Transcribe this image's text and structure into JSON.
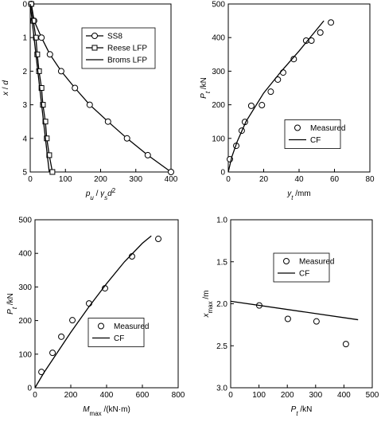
{
  "chart_data": [
    {
      "type": "line",
      "color": "#000000",
      "y_inverted": true,
      "legend": "upper right",
      "xlabel": [
        {
          "text": "p",
          "italic": true
        },
        {
          "text": "u",
          "italic": true,
          "pos": "sub"
        },
        {
          "text": " / "
        },
        {
          "text": "γ",
          "italic": true
        },
        {
          "text": "s",
          "italic": true,
          "pos": "sub"
        },
        {
          "text": "d",
          "italic": true
        },
        {
          "text": "2",
          "pos": "sup"
        }
      ],
      "ylabel": [
        {
          "text": "x",
          "italic": true
        },
        {
          "text": " / "
        },
        {
          "text": "d",
          "italic": true
        }
      ],
      "xlim": [
        0,
        400
      ],
      "xticks": [
        0,
        100,
        200,
        300,
        400
      ],
      "ylim": [
        0,
        5
      ],
      "yticks": [
        0,
        1,
        2,
        3,
        4,
        5
      ],
      "series": [
        {
          "name": "SS8",
          "marker": "circle",
          "line": true,
          "x": [
            3,
            11,
            32,
            56,
            88,
            127,
            169,
            221,
            275,
            334,
            400
          ],
          "y": [
            0,
            0.5,
            1,
            1.5,
            2,
            2.5,
            3,
            3.5,
            4,
            4.5,
            5
          ]
        },
        {
          "name": "Reese LFP",
          "marker": "square",
          "line": true,
          "x": [
            3,
            9,
            16,
            20,
            25,
            32,
            36,
            43,
            47,
            54,
            63
          ],
          "y": [
            0,
            0.5,
            1,
            1.5,
            2,
            2.5,
            3,
            3.5,
            4,
            4.5,
            5
          ]
        },
        {
          "name": "Broms LFP",
          "marker": "none",
          "line": true,
          "x": [
            0,
            54
          ],
          "y": [
            0,
            5
          ]
        }
      ]
    },
    {
      "type": "line",
      "color": "#000000",
      "y_inverted": false,
      "legend": "right",
      "xlabel": [
        {
          "text": "y",
          "italic": true
        },
        {
          "text": "t",
          "italic": true,
          "pos": "sub"
        },
        {
          "text": " /mm"
        }
      ],
      "ylabel": [
        {
          "text": "P",
          "italic": true
        },
        {
          "text": "t",
          "italic": true,
          "pos": "sub"
        },
        {
          "text": " /kN"
        }
      ],
      "xlim": [
        0,
        80
      ],
      "xticks": [
        0,
        20,
        40,
        60,
        80
      ],
      "ylim": [
        0,
        500
      ],
      "yticks": [
        0,
        100,
        200,
        300,
        400,
        500
      ],
      "series": [
        {
          "name": "Measured",
          "marker": "circle",
          "line": false,
          "x": [
            0.9,
            4.5,
            7.6,
            9.4,
            13,
            19,
            24,
            28,
            31,
            37,
            44,
            47,
            52,
            58
          ],
          "y": [
            38,
            78,
            123,
            149,
            197,
            199,
            239,
            275,
            296,
            336,
            391,
            391,
            415,
            445
          ]
        },
        {
          "name": "CF",
          "marker": "none",
          "line": true,
          "x": [
            0,
            2,
            5,
            10,
            20,
            30,
            40,
            54
          ],
          "y": [
            0,
            45,
            90,
            150,
            235,
            300,
            360,
            450
          ]
        }
      ]
    },
    {
      "type": "line",
      "color": "#000000",
      "y_inverted": false,
      "legend": "center",
      "xlabel": [
        {
          "text": "M",
          "italic": true
        },
        {
          "text": "max",
          "pos": "sub"
        },
        {
          "text": " /(kN·m)"
        }
      ],
      "ylabel": [
        {
          "text": "P",
          "italic": true
        },
        {
          "text": "t",
          "italic": true,
          "pos": "sub"
        },
        {
          "text": " /kN"
        }
      ],
      "xlim": [
        0,
        800
      ],
      "xticks": [
        0,
        200,
        400,
        600,
        800
      ],
      "ylim": [
        0,
        500
      ],
      "yticks": [
        0,
        100,
        200,
        300,
        400,
        500
      ],
      "series": [
        {
          "name": "Measured",
          "marker": "circle",
          "line": false,
          "x": [
            36,
            98,
            147,
            209,
            302,
            391,
            542,
            689
          ],
          "y": [
            47,
            104,
            152,
            201,
            251,
            296,
            391,
            443
          ]
        },
        {
          "name": "CF",
          "marker": "none",
          "line": true,
          "x": [
            0,
            50,
            100,
            200,
            300,
            400,
            500,
            600,
            650
          ],
          "y": [
            0,
            45,
            85,
            165,
            240,
            310,
            375,
            430,
            452
          ]
        }
      ]
    },
    {
      "type": "line",
      "color": "#000000",
      "y_inverted": true,
      "legend": "upper center",
      "xlabel": [
        {
          "text": "P",
          "italic": true
        },
        {
          "text": "t",
          "italic": true,
          "pos": "sub"
        },
        {
          "text": " /kN"
        }
      ],
      "ylabel": [
        {
          "text": "x",
          "italic": true
        },
        {
          "text": "max",
          "pos": "sub"
        },
        {
          "text": " /m"
        }
      ],
      "xlim": [
        0,
        500
      ],
      "xticks": [
        0,
        100,
        200,
        300,
        400,
        500
      ],
      "ylim": [
        1,
        3
      ],
      "yticks": [
        {
          "value": 1,
          "label": "1.0"
        },
        {
          "value": 1.5,
          "label": "1.5"
        },
        {
          "value": 2,
          "label": "2.0"
        },
        {
          "value": 2.5,
          "label": "2.5"
        },
        {
          "value": 3,
          "label": "3.0"
        }
      ],
      "series": [
        {
          "name": "Measured",
          "marker": "circle",
          "line": false,
          "x": [
            101,
            202,
            303,
            407
          ],
          "y": [
            2.02,
            2.18,
            2.21,
            2.48
          ]
        },
        {
          "name": "CF",
          "marker": "none",
          "line": true,
          "x": [
            0,
            450
          ],
          "y": [
            1.97,
            2.19
          ]
        }
      ]
    }
  ]
}
